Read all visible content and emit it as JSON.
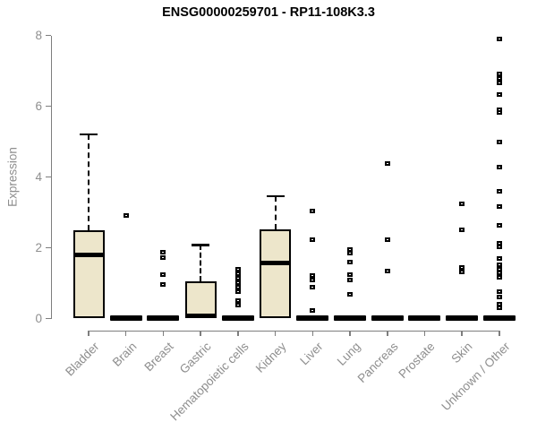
{
  "chart_data": {
    "type": "boxplot",
    "title": "ENSG00000259701 - RP11-108K3.3",
    "ylabel": "Expression",
    "xlabel": "",
    "ylim": [
      0,
      8
    ],
    "yticks": [
      0,
      2,
      4,
      6,
      8
    ],
    "grid": false,
    "legend": false,
    "categories": [
      "Bladder",
      "Brain",
      "Breast",
      "Gastric",
      "Hematopoietic cells",
      "Kidney",
      "Liver",
      "Lung",
      "Pancreas",
      "Prostate",
      "Skin",
      "Unknown / Other"
    ],
    "boxes": [
      {
        "category": "Bladder",
        "q1": 0,
        "median": 1.8,
        "q3": 2.49,
        "whisker_low": 0,
        "whisker_high": 5.2,
        "outliers": []
      },
      {
        "category": "Brain",
        "q1": 0,
        "median": 0,
        "q3": 0,
        "whisker_low": 0,
        "whisker_high": 0,
        "outliers": [
          2.9
        ]
      },
      {
        "category": "Breast",
        "q1": 0,
        "median": 0,
        "q3": 0,
        "whisker_low": 0,
        "whisker_high": 0,
        "outliers": [
          1.88,
          1.72,
          1.25,
          0.95
        ]
      },
      {
        "category": "Gastric",
        "q1": 0,
        "median": 0.07,
        "q3": 1.05,
        "whisker_low": 0,
        "whisker_high": 2.08,
        "outliers": []
      },
      {
        "category": "Hematopoietic cells",
        "q1": 0,
        "median": 0,
        "q3": 0,
        "whisker_low": 0,
        "whisker_high": 0,
        "outliers": [
          1.39,
          1.27,
          1.14,
          1.01,
          0.89,
          0.76,
          0.51,
          0.38
        ]
      },
      {
        "category": "Kidney",
        "q1": 0,
        "median": 1.58,
        "q3": 2.52,
        "whisker_low": 0,
        "whisker_high": 3.45,
        "outliers": []
      },
      {
        "category": "Liver",
        "q1": 0,
        "median": 0,
        "q3": 0,
        "whisker_low": 0,
        "whisker_high": 0,
        "outliers": [
          3.04,
          2.23,
          1.21,
          1.09,
          0.89,
          0.23
        ]
      },
      {
        "category": "Lung",
        "q1": 0,
        "median": 0,
        "q3": 0,
        "whisker_low": 0,
        "whisker_high": 0,
        "outliers": [
          1.95,
          1.85,
          1.6,
          1.24,
          1.09,
          0.68
        ]
      },
      {
        "category": "Pancreas",
        "q1": 0,
        "median": 0,
        "q3": 0,
        "whisker_low": 0,
        "whisker_high": 0,
        "outliers": [
          4.38,
          2.23,
          1.34
        ]
      },
      {
        "category": "Prostate",
        "q1": 0,
        "median": 0,
        "q3": 0,
        "whisker_low": 0,
        "whisker_high": 0,
        "outliers": []
      },
      {
        "category": "Skin",
        "q1": 0,
        "median": 0,
        "q3": 0,
        "whisker_low": 0,
        "whisker_high": 0,
        "outliers": [
          3.24,
          2.51,
          1.44,
          1.32
        ]
      },
      {
        "category": "Unknown / Other",
        "q1": 0,
        "median": 0,
        "q3": 0,
        "whisker_low": 0,
        "whisker_high": 0,
        "outliers": [
          7.9,
          6.9,
          6.78,
          6.65,
          6.33,
          5.9,
          5.82,
          4.99,
          4.28,
          3.59,
          3.16,
          2.63,
          2.13,
          2.03,
          1.7,
          1.52,
          1.4,
          1.3,
          1.16,
          0.76,
          0.61,
          0.41,
          0.3
        ]
      }
    ],
    "colors": {
      "box_fill": "#EDE6CB",
      "box_border": "#000000",
      "median": "#000000",
      "outlier": "#000000",
      "axis": "#7E7E7E",
      "tick_label": "#8E8E8E",
      "title": "#000000",
      "background": "#FFFFFF"
    }
  }
}
